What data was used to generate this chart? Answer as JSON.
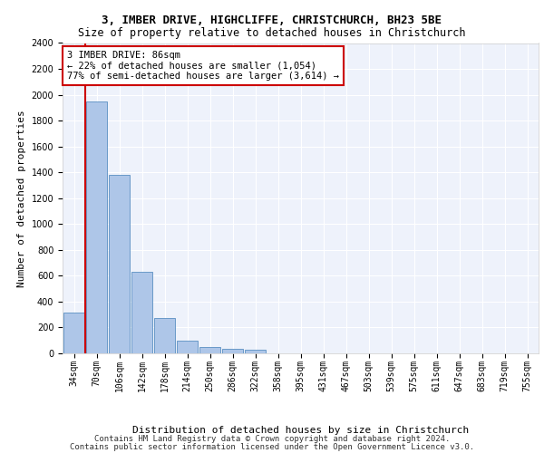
{
  "title1": "3, IMBER DRIVE, HIGHCLIFFE, CHRISTCHURCH, BH23 5BE",
  "title2": "Size of property relative to detached houses in Christchurch",
  "xlabel": "Distribution of detached houses by size in Christchurch",
  "ylabel": "Number of detached properties",
  "bar_labels": [
    "34sqm",
    "70sqm",
    "106sqm",
    "142sqm",
    "178sqm",
    "214sqm",
    "250sqm",
    "286sqm",
    "322sqm",
    "358sqm",
    "395sqm",
    "431sqm",
    "467sqm",
    "503sqm",
    "539sqm",
    "575sqm",
    "611sqm",
    "647sqm",
    "683sqm",
    "719sqm",
    "755sqm"
  ],
  "bar_values": [
    315,
    1950,
    1380,
    630,
    270,
    100,
    48,
    32,
    25,
    0,
    0,
    0,
    0,
    0,
    0,
    0,
    0,
    0,
    0,
    0,
    0
  ],
  "bar_color": "#aec6e8",
  "bar_edge_color": "#5a8fc2",
  "vline_index": 1,
  "vline_color": "#cc0000",
  "annotation_text": "3 IMBER DRIVE: 86sqm\n← 22% of detached houses are smaller (1,054)\n77% of semi-detached houses are larger (3,614) →",
  "annotation_box_color": "#ffffff",
  "annotation_box_edge": "#cc0000",
  "ylim": [
    0,
    2400
  ],
  "yticks": [
    0,
    200,
    400,
    600,
    800,
    1000,
    1200,
    1400,
    1600,
    1800,
    2000,
    2200,
    2400
  ],
  "footer1": "Contains HM Land Registry data © Crown copyright and database right 2024.",
  "footer2": "Contains public sector information licensed under the Open Government Licence v3.0.",
  "bg_color": "#eef2fb",
  "grid_color": "#ffffff",
  "title1_fontsize": 9,
  "title2_fontsize": 8.5,
  "xlabel_fontsize": 8,
  "ylabel_fontsize": 8,
  "tick_fontsize": 7,
  "footer_fontsize": 6.5,
  "annotation_fontsize": 7.5
}
